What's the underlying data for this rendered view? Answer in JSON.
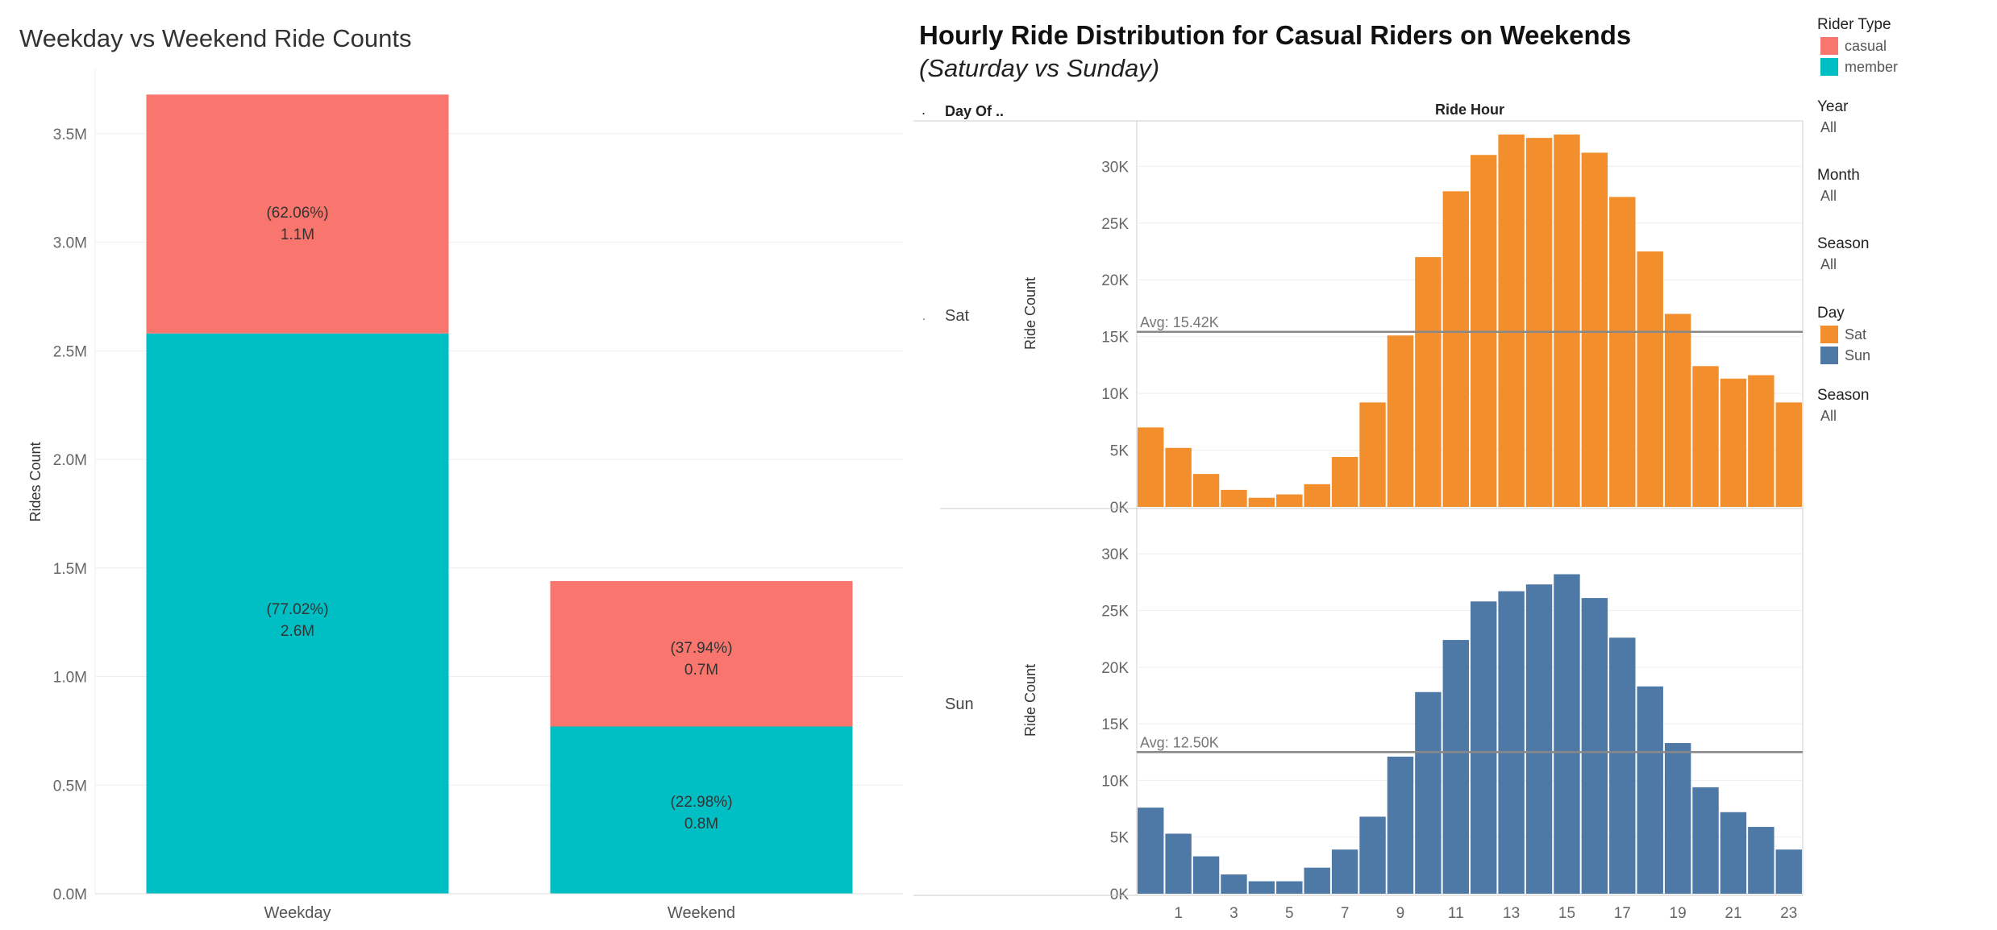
{
  "colors": {
    "casual": "#F8766D",
    "member": "#00BFC4",
    "sat": "#F28E2B",
    "sun": "#4E79A7",
    "avg_line": "#888888",
    "grid": "#eeeeee",
    "axis_text": "#666666"
  },
  "left_chart": {
    "title": "Weekday vs Weekend Ride Counts",
    "ylabel": "Rides Count",
    "y_ticks": [
      "0.0M",
      "0.5M",
      "1.0M",
      "1.5M",
      "2.0M",
      "2.5M",
      "3.0M",
      "3.5M"
    ],
    "categories": [
      "Weekday",
      "Weekend"
    ],
    "labels": {
      "weekday_casual_pct": "(62.06%)",
      "weekday_casual_val": "1.1M",
      "weekday_member_pct": "(77.02%)",
      "weekday_member_val": "2.6M",
      "weekend_casual_pct": "(37.94%)",
      "weekend_casual_val": "0.7M",
      "weekend_member_pct": "(22.98%)",
      "weekend_member_val": "0.8M"
    }
  },
  "right_chart": {
    "title": "Hourly Ride Distribution for Casual Riders on Weekends",
    "subtitle": "(Saturday vs Sunday)",
    "col_header_left": "Day Of ..",
    "col_header_dot": ".",
    "col_header_right": "Ride Hour",
    "ylabel": "Ride Count",
    "sat_label": "Sat",
    "sun_label": "Sun",
    "sat_dot": ".",
    "avg_sat": "Avg: 15.42K",
    "avg_sun": "Avg: 12.50K",
    "y_ticks": [
      "0K",
      "5K",
      "10K",
      "15K",
      "20K",
      "25K",
      "30K"
    ],
    "x_ticks": [
      "1",
      "3",
      "5",
      "7",
      "9",
      "11",
      "13",
      "15",
      "17",
      "19",
      "21",
      "23"
    ]
  },
  "sidebar": {
    "rider_type_title": "Rider Type",
    "rider_type_items": [
      "casual",
      "member"
    ],
    "year_title": "Year",
    "year_value": "All",
    "month_title": "Month",
    "month_value": "All",
    "season1_title": "Season",
    "season1_value": "All",
    "day_title": "Day",
    "day_items": [
      "Sat",
      "Sun"
    ],
    "season2_title": "Season",
    "season2_value": "All"
  },
  "chart_data": [
    {
      "type": "bar",
      "title": "Weekday vs Weekend Ride Counts",
      "xlabel": "",
      "ylabel": "Rides Count",
      "categories": [
        "Weekday",
        "Weekend"
      ],
      "stacked": true,
      "ylim": [
        0,
        3.8
      ],
      "series": [
        {
          "name": "member",
          "values": [
            2.58,
            0.77
          ],
          "labels": [
            "(77.02%) 2.6M",
            "(22.98%) 0.8M"
          ]
        },
        {
          "name": "casual",
          "values": [
            1.1,
            0.67
          ],
          "labels": [
            "(62.06%) 1.1M",
            "(37.94%) 0.7M"
          ]
        }
      ],
      "legend": "top-right"
    },
    {
      "type": "bar",
      "title": "Hourly Ride Distribution for Casual Riders on Weekends",
      "subtitle": "(Saturday vs Sunday)",
      "xlabel": "Ride Hour",
      "ylabel": "Ride Count",
      "x": [
        0,
        1,
        2,
        3,
        4,
        5,
        6,
        7,
        8,
        9,
        10,
        11,
        12,
        13,
        14,
        15,
        16,
        17,
        18,
        19,
        20,
        21,
        22,
        23
      ],
      "ylim": [
        0,
        34000
      ],
      "series": [
        {
          "name": "Sat",
          "average": 15420,
          "values": [
            7000,
            5200,
            2900,
            1500,
            800,
            1100,
            2000,
            4400,
            9200,
            15100,
            22000,
            27800,
            31000,
            32800,
            32500,
            32800,
            31200,
            27300,
            22500,
            17000,
            12400,
            11300,
            11600,
            9200
          ]
        },
        {
          "name": "Sun",
          "average": 12500,
          "values": [
            7600,
            5300,
            3300,
            1700,
            1100,
            1100,
            2300,
            3900,
            6800,
            12100,
            17800,
            22400,
            25800,
            26700,
            27300,
            28200,
            26100,
            22600,
            18300,
            13300,
            9400,
            7200,
            5900,
            3900
          ]
        }
      ],
      "legend": "right"
    }
  ]
}
